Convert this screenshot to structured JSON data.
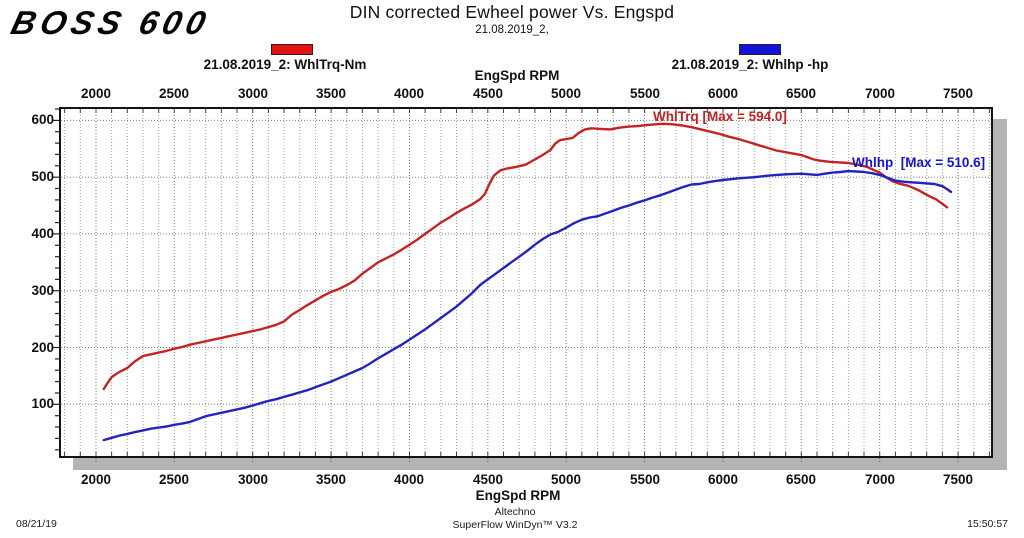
{
  "logo": "BOSS 600",
  "header": {
    "title": "DIN corrected Ewheel power Vs. Engspd",
    "subtitle": "21.08.2019_2,"
  },
  "legend": {
    "torque": {
      "label": "21.08.2019_2: WhlTrq-Nm",
      "color": "#e51010"
    },
    "power": {
      "label": "21.08.2019_2: Whlhp -hp",
      "color": "#1414d8"
    }
  },
  "axis": {
    "top_label": "EngSpd RPM",
    "bottom_label": "EngSpd RPM"
  },
  "annotations": {
    "torque_max": {
      "text": "WhlTrq [Max = 594.0]",
      "color": "#c42020"
    },
    "power_max": {
      "text": "Whlhp  [Max = 510.6]",
      "color": "#1515cc"
    }
  },
  "footer": {
    "date": "08/21/19",
    "operator": "Altechno",
    "software": "SuperFlow WinDyn™ V3.2",
    "time": "15:50:57"
  },
  "chart_data": {
    "type": "line",
    "title": "DIN corrected Ewheel power Vs. Engspd",
    "subtitle": "21.08.2019_2,",
    "xlabel": "EngSpd RPM",
    "ylabel": "",
    "xlim": [
      1777,
      7710
    ],
    "ylim": [
      9,
      620
    ],
    "x_ticks": [
      2000,
      2500,
      3000,
      3500,
      4000,
      4500,
      5000,
      5500,
      6000,
      6500,
      7000,
      7500
    ],
    "y_ticks": [
      100,
      200,
      300,
      400,
      500,
      600
    ],
    "grid": "dotted; vertical every 100 RPM, horizontal every 100 units",
    "legend_position": "top",
    "series": [
      {
        "name": "WhlTrq-Nm",
        "color": "#c52323",
        "max": 594.0,
        "points": [
          [
            2050,
            127
          ],
          [
            2070,
            136
          ],
          [
            2100,
            148
          ],
          [
            2150,
            157
          ],
          [
            2200,
            164
          ],
          [
            2250,
            176
          ],
          [
            2300,
            185
          ],
          [
            2350,
            188
          ],
          [
            2400,
            191
          ],
          [
            2450,
            194
          ],
          [
            2500,
            198
          ],
          [
            2550,
            201
          ],
          [
            2600,
            205
          ],
          [
            2650,
            208
          ],
          [
            2700,
            211
          ],
          [
            2750,
            214
          ],
          [
            2800,
            217
          ],
          [
            2850,
            220
          ],
          [
            2900,
            223
          ],
          [
            2950,
            226
          ],
          [
            3000,
            229
          ],
          [
            3050,
            232
          ],
          [
            3100,
            236
          ],
          [
            3150,
            240
          ],
          [
            3200,
            246
          ],
          [
            3250,
            258
          ],
          [
            3300,
            266
          ],
          [
            3350,
            275
          ],
          [
            3400,
            283
          ],
          [
            3450,
            291
          ],
          [
            3500,
            298
          ],
          [
            3550,
            303
          ],
          [
            3600,
            310
          ],
          [
            3650,
            318
          ],
          [
            3700,
            330
          ],
          [
            3750,
            340
          ],
          [
            3800,
            350
          ],
          [
            3850,
            357
          ],
          [
            3900,
            364
          ],
          [
            3950,
            372
          ],
          [
            4000,
            381
          ],
          [
            4050,
            390
          ],
          [
            4100,
            400
          ],
          [
            4150,
            410
          ],
          [
            4200,
            420
          ],
          [
            4250,
            428
          ],
          [
            4300,
            437
          ],
          [
            4350,
            445
          ],
          [
            4400,
            452
          ],
          [
            4450,
            461
          ],
          [
            4480,
            470
          ],
          [
            4510,
            488
          ],
          [
            4540,
            503
          ],
          [
            4580,
            512
          ],
          [
            4620,
            515
          ],
          [
            4680,
            518
          ],
          [
            4740,
            522
          ],
          [
            4800,
            531
          ],
          [
            4850,
            539
          ],
          [
            4900,
            548
          ],
          [
            4930,
            559
          ],
          [
            4960,
            565
          ],
          [
            5000,
            567
          ],
          [
            5040,
            569
          ],
          [
            5080,
            578
          ],
          [
            5120,
            584
          ],
          [
            5160,
            586
          ],
          [
            5220,
            585
          ],
          [
            5280,
            584
          ],
          [
            5340,
            587
          ],
          [
            5400,
            589
          ],
          [
            5460,
            590
          ],
          [
            5520,
            592
          ],
          [
            5570,
            593
          ],
          [
            5620,
            594
          ],
          [
            5680,
            593
          ],
          [
            5740,
            591
          ],
          [
            5800,
            588
          ],
          [
            5860,
            584
          ],
          [
            5920,
            580
          ],
          [
            5980,
            576
          ],
          [
            6040,
            571
          ],
          [
            6100,
            567
          ],
          [
            6160,
            562
          ],
          [
            6220,
            557
          ],
          [
            6280,
            552
          ],
          [
            6340,
            547
          ],
          [
            6400,
            544
          ],
          [
            6460,
            541
          ],
          [
            6500,
            539
          ],
          [
            6540,
            535
          ],
          [
            6580,
            531
          ],
          [
            6620,
            529
          ],
          [
            6680,
            527
          ],
          [
            6740,
            526
          ],
          [
            6800,
            525
          ],
          [
            6860,
            522
          ],
          [
            6920,
            518
          ],
          [
            6960,
            513
          ],
          [
            7000,
            508
          ],
          [
            7040,
            500
          ],
          [
            7080,
            493
          ],
          [
            7120,
            489
          ],
          [
            7180,
            485
          ],
          [
            7240,
            478
          ],
          [
            7280,
            472
          ],
          [
            7320,
            466
          ],
          [
            7360,
            461
          ],
          [
            7400,
            453
          ],
          [
            7430,
            447
          ]
        ]
      },
      {
        "name": "Whlhp -hp",
        "color": "#2323c0",
        "max": 510.6,
        "points": [
          [
            2050,
            37
          ],
          [
            2100,
            41
          ],
          [
            2150,
            45
          ],
          [
            2200,
            48
          ],
          [
            2250,
            51
          ],
          [
            2300,
            54
          ],
          [
            2350,
            57
          ],
          [
            2400,
            59
          ],
          [
            2450,
            61
          ],
          [
            2500,
            64
          ],
          [
            2550,
            66
          ],
          [
            2600,
            69
          ],
          [
            2650,
            74
          ],
          [
            2700,
            79
          ],
          [
            2750,
            82
          ],
          [
            2800,
            85
          ],
          [
            2850,
            88
          ],
          [
            2900,
            91
          ],
          [
            2950,
            94
          ],
          [
            3000,
            98
          ],
          [
            3050,
            102
          ],
          [
            3100,
            106
          ],
          [
            3150,
            109
          ],
          [
            3200,
            113
          ],
          [
            3250,
            117
          ],
          [
            3300,
            121
          ],
          [
            3350,
            125
          ],
          [
            3400,
            130
          ],
          [
            3450,
            135
          ],
          [
            3500,
            140
          ],
          [
            3550,
            146
          ],
          [
            3600,
            152
          ],
          [
            3650,
            158
          ],
          [
            3700,
            164
          ],
          [
            3750,
            172
          ],
          [
            3800,
            181
          ],
          [
            3850,
            189
          ],
          [
            3900,
            197
          ],
          [
            3950,
            205
          ],
          [
            4000,
            214
          ],
          [
            4050,
            223
          ],
          [
            4100,
            232
          ],
          [
            4150,
            242
          ],
          [
            4200,
            252
          ],
          [
            4250,
            262
          ],
          [
            4300,
            272
          ],
          [
            4350,
            284
          ],
          [
            4400,
            296
          ],
          [
            4450,
            310
          ],
          [
            4500,
            320
          ],
          [
            4550,
            330
          ],
          [
            4600,
            340
          ],
          [
            4650,
            350
          ],
          [
            4700,
            360
          ],
          [
            4750,
            370
          ],
          [
            4800,
            381
          ],
          [
            4850,
            391
          ],
          [
            4900,
            399
          ],
          [
            4950,
            404
          ],
          [
            5000,
            411
          ],
          [
            5050,
            419
          ],
          [
            5100,
            425
          ],
          [
            5150,
            429
          ],
          [
            5200,
            431
          ],
          [
            5250,
            436
          ],
          [
            5300,
            441
          ],
          [
            5350,
            446
          ],
          [
            5400,
            450
          ],
          [
            5450,
            455
          ],
          [
            5500,
            459
          ],
          [
            5550,
            464
          ],
          [
            5600,
            468
          ],
          [
            5650,
            473
          ],
          [
            5700,
            478
          ],
          [
            5750,
            483
          ],
          [
            5800,
            487
          ],
          [
            5850,
            488
          ],
          [
            5900,
            491
          ],
          [
            5950,
            493
          ],
          [
            6000,
            495
          ],
          [
            6100,
            498
          ],
          [
            6200,
            500
          ],
          [
            6300,
            503
          ],
          [
            6400,
            505
          ],
          [
            6500,
            506
          ],
          [
            6550,
            505
          ],
          [
            6600,
            504
          ],
          [
            6650,
            506
          ],
          [
            6700,
            508
          ],
          [
            6750,
            509
          ],
          [
            6800,
            510.6
          ],
          [
            6850,
            510
          ],
          [
            6900,
            509
          ],
          [
            6950,
            507
          ],
          [
            7000,
            504
          ],
          [
            7050,
            499
          ],
          [
            7100,
            494
          ],
          [
            7150,
            492
          ],
          [
            7200,
            491
          ],
          [
            7250,
            490
          ],
          [
            7300,
            489
          ],
          [
            7350,
            488
          ],
          [
            7400,
            484
          ],
          [
            7430,
            479
          ],
          [
            7455,
            474
          ]
        ]
      }
    ]
  }
}
